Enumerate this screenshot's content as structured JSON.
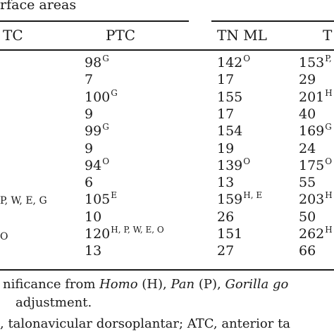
{
  "title": "rface areas",
  "headers": {
    "col0": "TC",
    "ptc": "PTC",
    "tnml": "TN ML",
    "col3": "T"
  },
  "left_fragments": {
    "row9": "P, W, E, G",
    "row11": "O"
  },
  "rows": [
    {
      "ptc": "98",
      "ptc_sup": "G",
      "tnml": "142",
      "tnml_sup": "O",
      "col3": "153",
      "col3_sup": "P,"
    },
    {
      "ptc": "7",
      "ptc_sup": "",
      "tnml": "17",
      "tnml_sup": "",
      "col3": "29",
      "col3_sup": ""
    },
    {
      "ptc": "100",
      "ptc_sup": "G",
      "tnml": "155",
      "tnml_sup": "",
      "col3": "201",
      "col3_sup": "H"
    },
    {
      "ptc": "9",
      "ptc_sup": "",
      "tnml": "17",
      "tnml_sup": "",
      "col3": "40",
      "col3_sup": ""
    },
    {
      "ptc": "99",
      "ptc_sup": "G",
      "tnml": "154",
      "tnml_sup": "",
      "col3": "169",
      "col3_sup": "G"
    },
    {
      "ptc": "9",
      "ptc_sup": "",
      "tnml": "19",
      "tnml_sup": "",
      "col3": "24",
      "col3_sup": ""
    },
    {
      "ptc": "94",
      "ptc_sup": "O",
      "tnml": "139",
      "tnml_sup": "O",
      "col3": "175",
      "col3_sup": "O"
    },
    {
      "ptc": "6",
      "ptc_sup": "",
      "tnml": "13",
      "tnml_sup": "",
      "col3": "55",
      "col3_sup": ""
    },
    {
      "ptc": "105",
      "ptc_sup": "E",
      "tnml": "159",
      "tnml_sup": "H, E",
      "col3": "203",
      "col3_sup": "H"
    },
    {
      "ptc": "10",
      "ptc_sup": "",
      "tnml": "26",
      "tnml_sup": "",
      "col3": "50",
      "col3_sup": ""
    },
    {
      "ptc": "120",
      "ptc_sup": "H, P, W, E, O",
      "tnml": "151",
      "tnml_sup": "",
      "col3": "262",
      "col3_sup": "H"
    },
    {
      "ptc": "13",
      "ptc_sup": "",
      "tnml": "27",
      "tnml_sup": "",
      "col3": "66",
      "col3_sup": ""
    }
  ],
  "footnotes": {
    "line1_a": "nificance from ",
    "line1_homo": "Homo",
    "line1_b": " (H), ",
    "line1_pan": "Pan",
    "line1_c": " (P), ",
    "line1_gor": "Gorilla go",
    "line2": "adjustment.",
    "line3": ", talonavicular dorsoplantar; ATC, anterior ta"
  }
}
